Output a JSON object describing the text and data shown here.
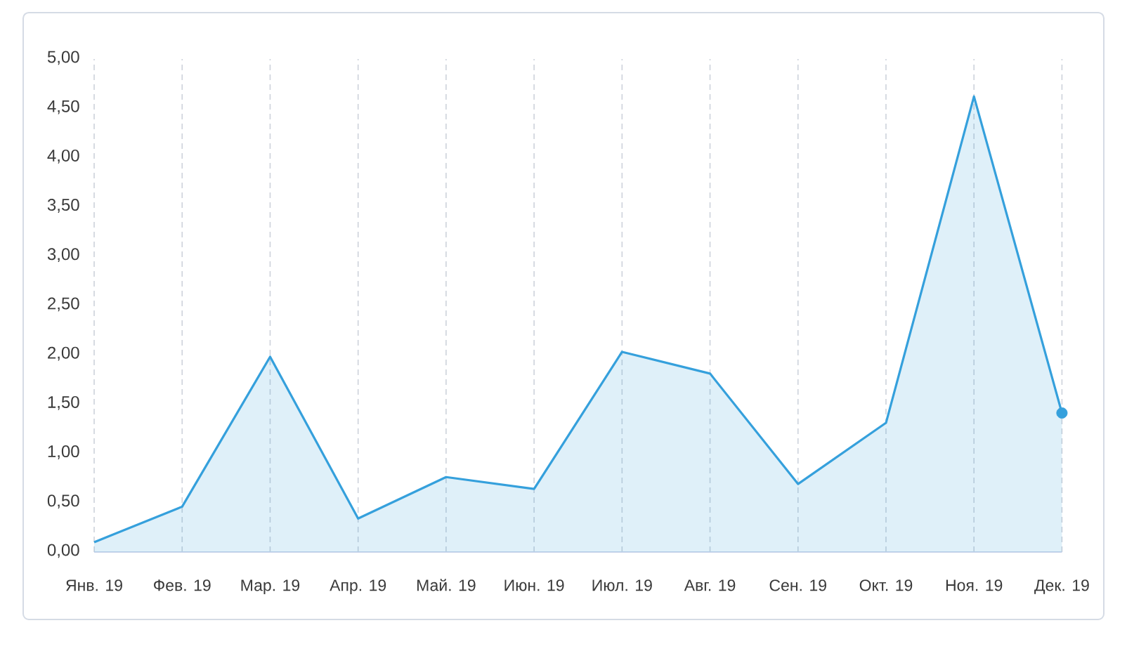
{
  "chart_data": {
    "type": "area",
    "categories": [
      "Янв. 19",
      "Фев. 19",
      "Мар. 19",
      "Апр. 19",
      "Май. 19",
      "Июн. 19",
      "Июл. 19",
      "Авг. 19",
      "Сен. 19",
      "Окт. 19",
      "Ноя. 19",
      "Дек. 19"
    ],
    "series": [
      {
        "color": "#35a0dc",
        "values": [
          0.1,
          0.46,
          1.98,
          0.34,
          0.76,
          0.64,
          2.03,
          1.81,
          0.69,
          1.31,
          4.62,
          1.41
        ]
      },
      {
        "type": "scatter",
        "marker": "circle",
        "color": "#35a0dc",
        "values": [
          null,
          null,
          null,
          null,
          null,
          null,
          null,
          null,
          null,
          null,
          null,
          1.41
        ]
      }
    ],
    "ylim": [
      0,
      5
    ],
    "yticks": [
      {
        "value": 0,
        "label": "0,00"
      },
      {
        "value": 0.5,
        "label": "0,50"
      },
      {
        "value": 1,
        "label": "1,00"
      },
      {
        "value": 1.5,
        "label": "1,50"
      },
      {
        "value": 2,
        "label": "2,00"
      },
      {
        "value": 2.5,
        "label": "2,50"
      },
      {
        "value": 3,
        "label": "3,00"
      },
      {
        "value": 3.5,
        "label": "3,50"
      },
      {
        "value": 4,
        "label": "4,00"
      },
      {
        "value": 4.5,
        "label": "4,50"
      },
      {
        "value": 5,
        "label": "5,00"
      }
    ],
    "grid": "x"
  }
}
